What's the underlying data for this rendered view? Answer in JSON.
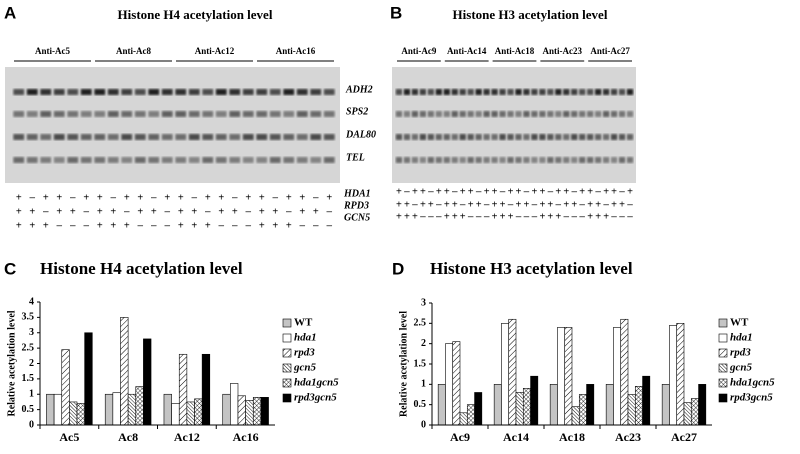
{
  "panels": {
    "A": {
      "letter": "A",
      "title": "Histone H4 acetylation level",
      "antibodies": [
        "Anti-Ac5",
        "Anti-Ac8",
        "Anti-Ac12",
        "Anti-Ac16"
      ]
    },
    "B": {
      "letter": "B",
      "title": "Histone H3 acetylation level",
      "antibodies": [
        "Anti-Ac9",
        "Anti-Ac14",
        "Anti-Ac18",
        "Anti-Ac23",
        "Anti-Ac27"
      ]
    }
  },
  "genes": [
    "ADH2",
    "SPS2",
    "DAL80",
    "TEL"
  ],
  "genotype": {
    "labels": [
      "HDA1",
      "RPD3",
      "GCN5"
    ],
    "signs": [
      [
        "+",
        "–",
        "+",
        "+",
        "–",
        "+"
      ],
      [
        "+",
        "+",
        "–",
        "+",
        "+",
        "–"
      ],
      [
        "+",
        "+",
        "+",
        "–",
        "–",
        "–"
      ]
    ]
  },
  "chart_data": [
    {
      "type": "bar",
      "panel_label": "C",
      "title": "Histone H4 acetylation level",
      "y_label": "Relative acetylation level",
      "categories": [
        "Ac5",
        "Ac8",
        "Ac12",
        "Ac16"
      ],
      "series": [
        {
          "name": "WT",
          "color": "#c4c4c4",
          "pattern": "solid",
          "values": [
            1,
            1,
            1,
            1
          ]
        },
        {
          "name": "hda1",
          "color": "#ffffff",
          "pattern": "solid",
          "values": [
            1,
            1.05,
            0.7,
            1.35
          ]
        },
        {
          "name": "rpd3",
          "color": "#ffffff",
          "pattern": "diagonal",
          "values": [
            2.45,
            3.5,
            2.3,
            0.95
          ]
        },
        {
          "name": "gcn5",
          "color": "#ffffff",
          "pattern": "diagonal-dense",
          "values": [
            0.75,
            1.0,
            0.75,
            0.8
          ]
        },
        {
          "name": "hda1gcn5",
          "color": "#ffffff",
          "pattern": "cross",
          "values": [
            0.7,
            1.25,
            0.85,
            0.9
          ]
        },
        {
          "name": "rpd3gcn5",
          "color": "#000000",
          "pattern": "solid",
          "values": [
            3.0,
            2.8,
            2.3,
            0.9
          ]
        }
      ],
      "ylim": [
        0,
        4
      ],
      "yticks": [
        0,
        0.5,
        1,
        1.5,
        2,
        2.5,
        3,
        3.5,
        4
      ],
      "grid": false,
      "legend": "right"
    },
    {
      "type": "bar",
      "panel_label": "D",
      "title": "Histone H3 acetylation level",
      "y_label": "Relative acetylation level",
      "categories": [
        "Ac9",
        "Ac14",
        "Ac18",
        "Ac23",
        "Ac27"
      ],
      "series": [
        {
          "name": "WT",
          "color": "#c4c4c4",
          "pattern": "solid",
          "values": [
            1,
            1,
            1,
            1,
            1
          ]
        },
        {
          "name": "hda1",
          "color": "#ffffff",
          "pattern": "solid",
          "values": [
            2.0,
            2.5,
            2.4,
            2.4,
            2.45
          ]
        },
        {
          "name": "rpd3",
          "color": "#ffffff",
          "pattern": "diagonal",
          "values": [
            2.05,
            2.6,
            2.4,
            2.6,
            2.5
          ]
        },
        {
          "name": "gcn5",
          "color": "#ffffff",
          "pattern": "diagonal-dense",
          "values": [
            0.3,
            0.8,
            0.45,
            0.75,
            0.55
          ]
        },
        {
          "name": "hda1gcn5",
          "color": "#ffffff",
          "pattern": "cross",
          "values": [
            0.5,
            0.9,
            0.75,
            0.95,
            0.65
          ]
        },
        {
          "name": "rpd3gcn5",
          "color": "#000000",
          "pattern": "solid",
          "values": [
            0.8,
            1.2,
            1.0,
            1.2,
            1.0
          ]
        }
      ],
      "ylim": [
        0,
        3
      ],
      "yticks": [
        0,
        0.5,
        1,
        1.5,
        2,
        2.5,
        3
      ],
      "grid": false,
      "legend": "right"
    }
  ]
}
